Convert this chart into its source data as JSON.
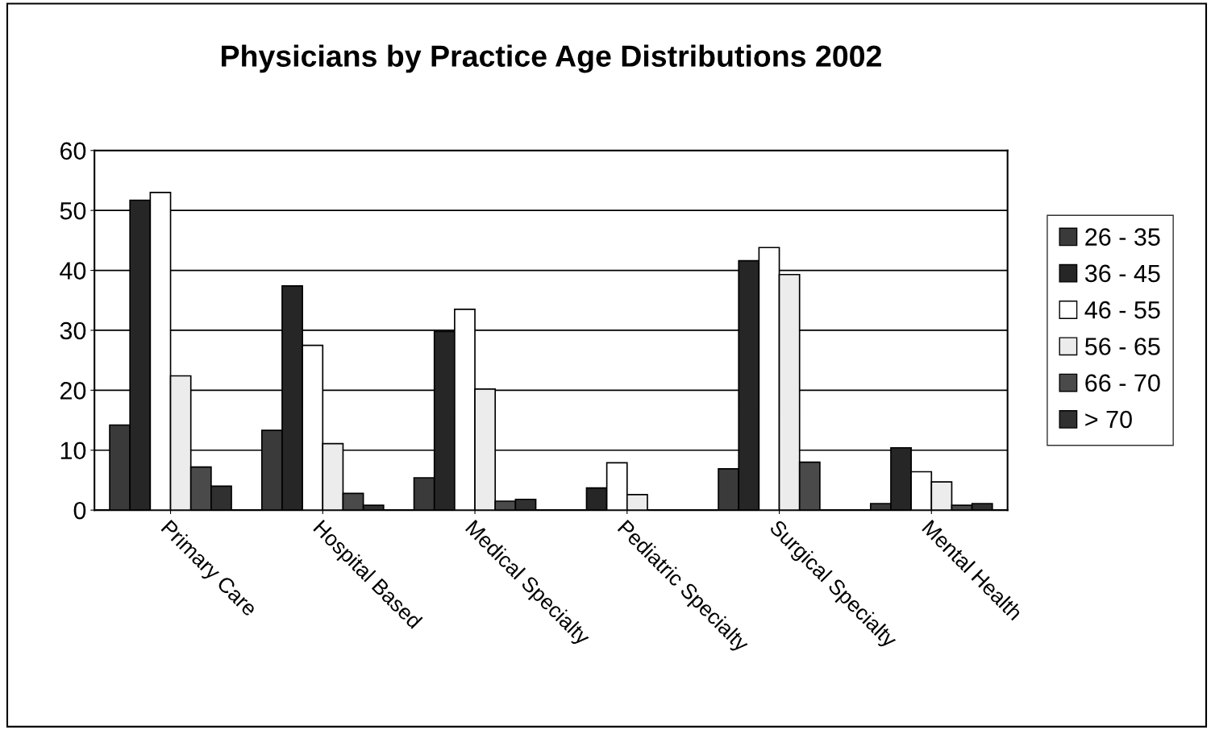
{
  "chart_data": {
    "type": "bar",
    "title": "Physicians by Practice Age Distributions 2002",
    "categories": [
      "Primary Care",
      "Hospital Based",
      "Medical Specialty",
      "Pediatric Specialty",
      "Surgical Specialty",
      "Mental Health"
    ],
    "series": [
      {
        "name": "26 - 35",
        "color": "#3a3a3a",
        "values": [
          14.2,
          13.3,
          5.4,
          null,
          6.9,
          1.1
        ]
      },
      {
        "name": "36 - 45",
        "color": "#262626",
        "values": [
          51.7,
          37.4,
          29.8,
          3.7,
          41.6,
          10.4
        ]
      },
      {
        "name": "46 - 55",
        "color": "#ffffff",
        "values": [
          53,
          27.5,
          33.5,
          7.9,
          43.8,
          6.4
        ]
      },
      {
        "name": "56 - 65",
        "color": "#ececec",
        "values": [
          22.4,
          11.1,
          20.2,
          2.6,
          39.3,
          4.7
        ]
      },
      {
        "name": "66 - 70",
        "color": "#4a4a4a",
        "values": [
          7.2,
          2.8,
          1.5,
          null,
          8.0,
          0.8
        ]
      },
      {
        "name": "> 70",
        "color": "#303030",
        "values": [
          4.0,
          0.8,
          1.8,
          null,
          null,
          1.1
        ]
      }
    ],
    "ylim": [
      0,
      60
    ],
    "yticks": [
      0,
      10,
      20,
      30,
      40,
      50,
      60
    ],
    "grid": "y",
    "legend": "right"
  }
}
